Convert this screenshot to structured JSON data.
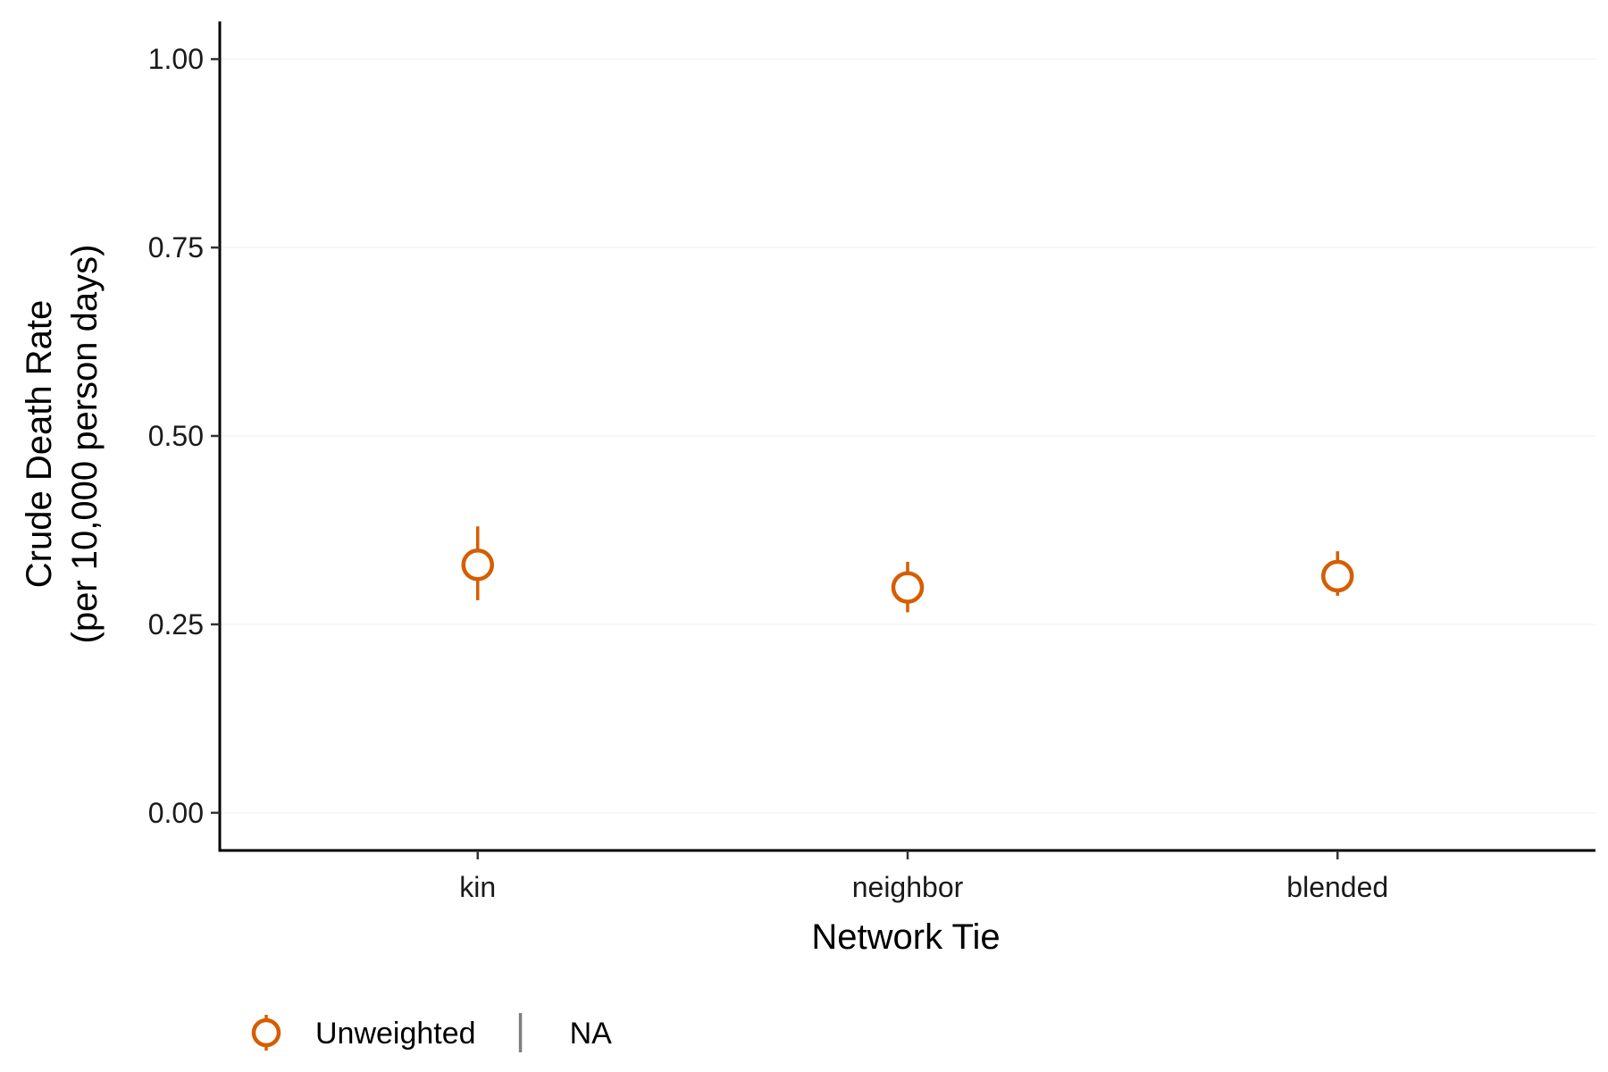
{
  "chart_data": {
    "type": "scatter",
    "title": "",
    "xlabel": "Network Tie",
    "ylabel_line1": "Crude Death Rate",
    "ylabel_line2": "(per 10,000 person days)",
    "categories": [
      "kin",
      "neighbor",
      "blended"
    ],
    "ylim": [
      -0.05,
      1.05
    ],
    "yticks": [
      0.0,
      0.25,
      0.5,
      0.75,
      1.0
    ],
    "ytick_labels": [
      "0.00",
      "0.25",
      "0.50",
      "0.75",
      "1.00"
    ],
    "grid": true,
    "legend_position": "bottom",
    "series": [
      {
        "name": "Unweighted",
        "color": "#D55E00",
        "marker": "open-circle",
        "points": [
          {
            "x": "kin",
            "y": 0.329,
            "lower": 0.282,
            "upper": 0.38
          },
          {
            "x": "neighbor",
            "y": 0.299,
            "lower": 0.266,
            "upper": 0.333
          },
          {
            "x": "blended",
            "y": 0.314,
            "lower": 0.288,
            "upper": 0.347
          }
        ]
      }
    ],
    "legend": [
      {
        "label": "Unweighted",
        "color": "#D55E00",
        "symbol": "open-circle"
      },
      {
        "label": "NA",
        "color": "#7f7f7f",
        "symbol": "line"
      }
    ]
  }
}
